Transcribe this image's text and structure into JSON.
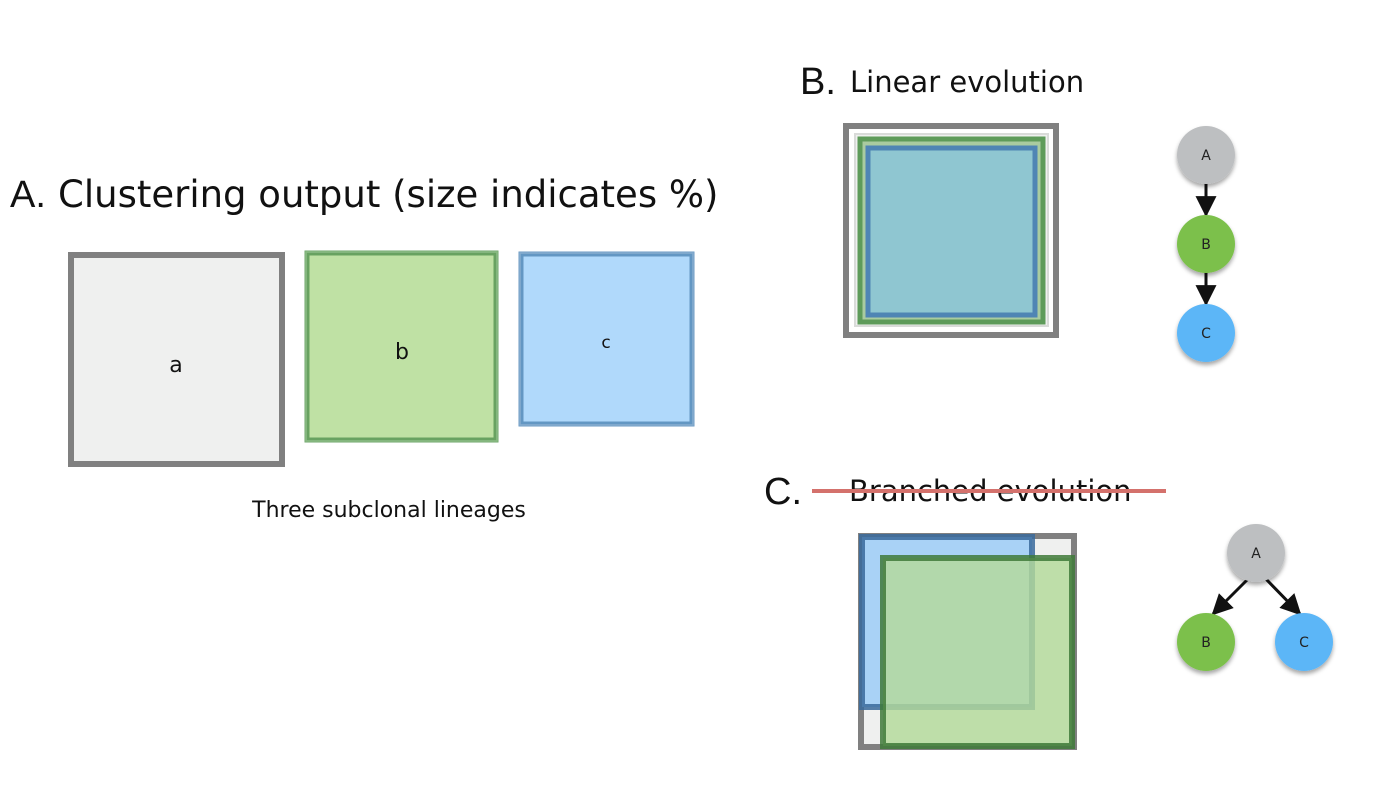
{
  "panel_a": {
    "letter": "A.",
    "title": "Clustering output (size indicates %)",
    "boxes": [
      "a",
      "b",
      "c"
    ],
    "caption": "Three subclonal lineages"
  },
  "panel_b": {
    "letter": "B.",
    "title": "Linear evolution",
    "tree_nodes": [
      "A",
      "B",
      "C"
    ]
  },
  "panel_c": {
    "letter": "C.",
    "title": "Branched evolution",
    "tree_nodes": [
      "A",
      "B",
      "C"
    ]
  },
  "colors": {
    "grey": "#808080",
    "grey_fill": "#eff0ef",
    "green": "#5e9b5a",
    "green_fill": "#bfe1a4",
    "blue": "#5b8fbd",
    "blue_fill": "#b0d9fb",
    "node_grey": "#bdbfc1",
    "node_green": "#7cc04b",
    "node_blue": "#5cb6f7",
    "strike": "#d4716c"
  }
}
